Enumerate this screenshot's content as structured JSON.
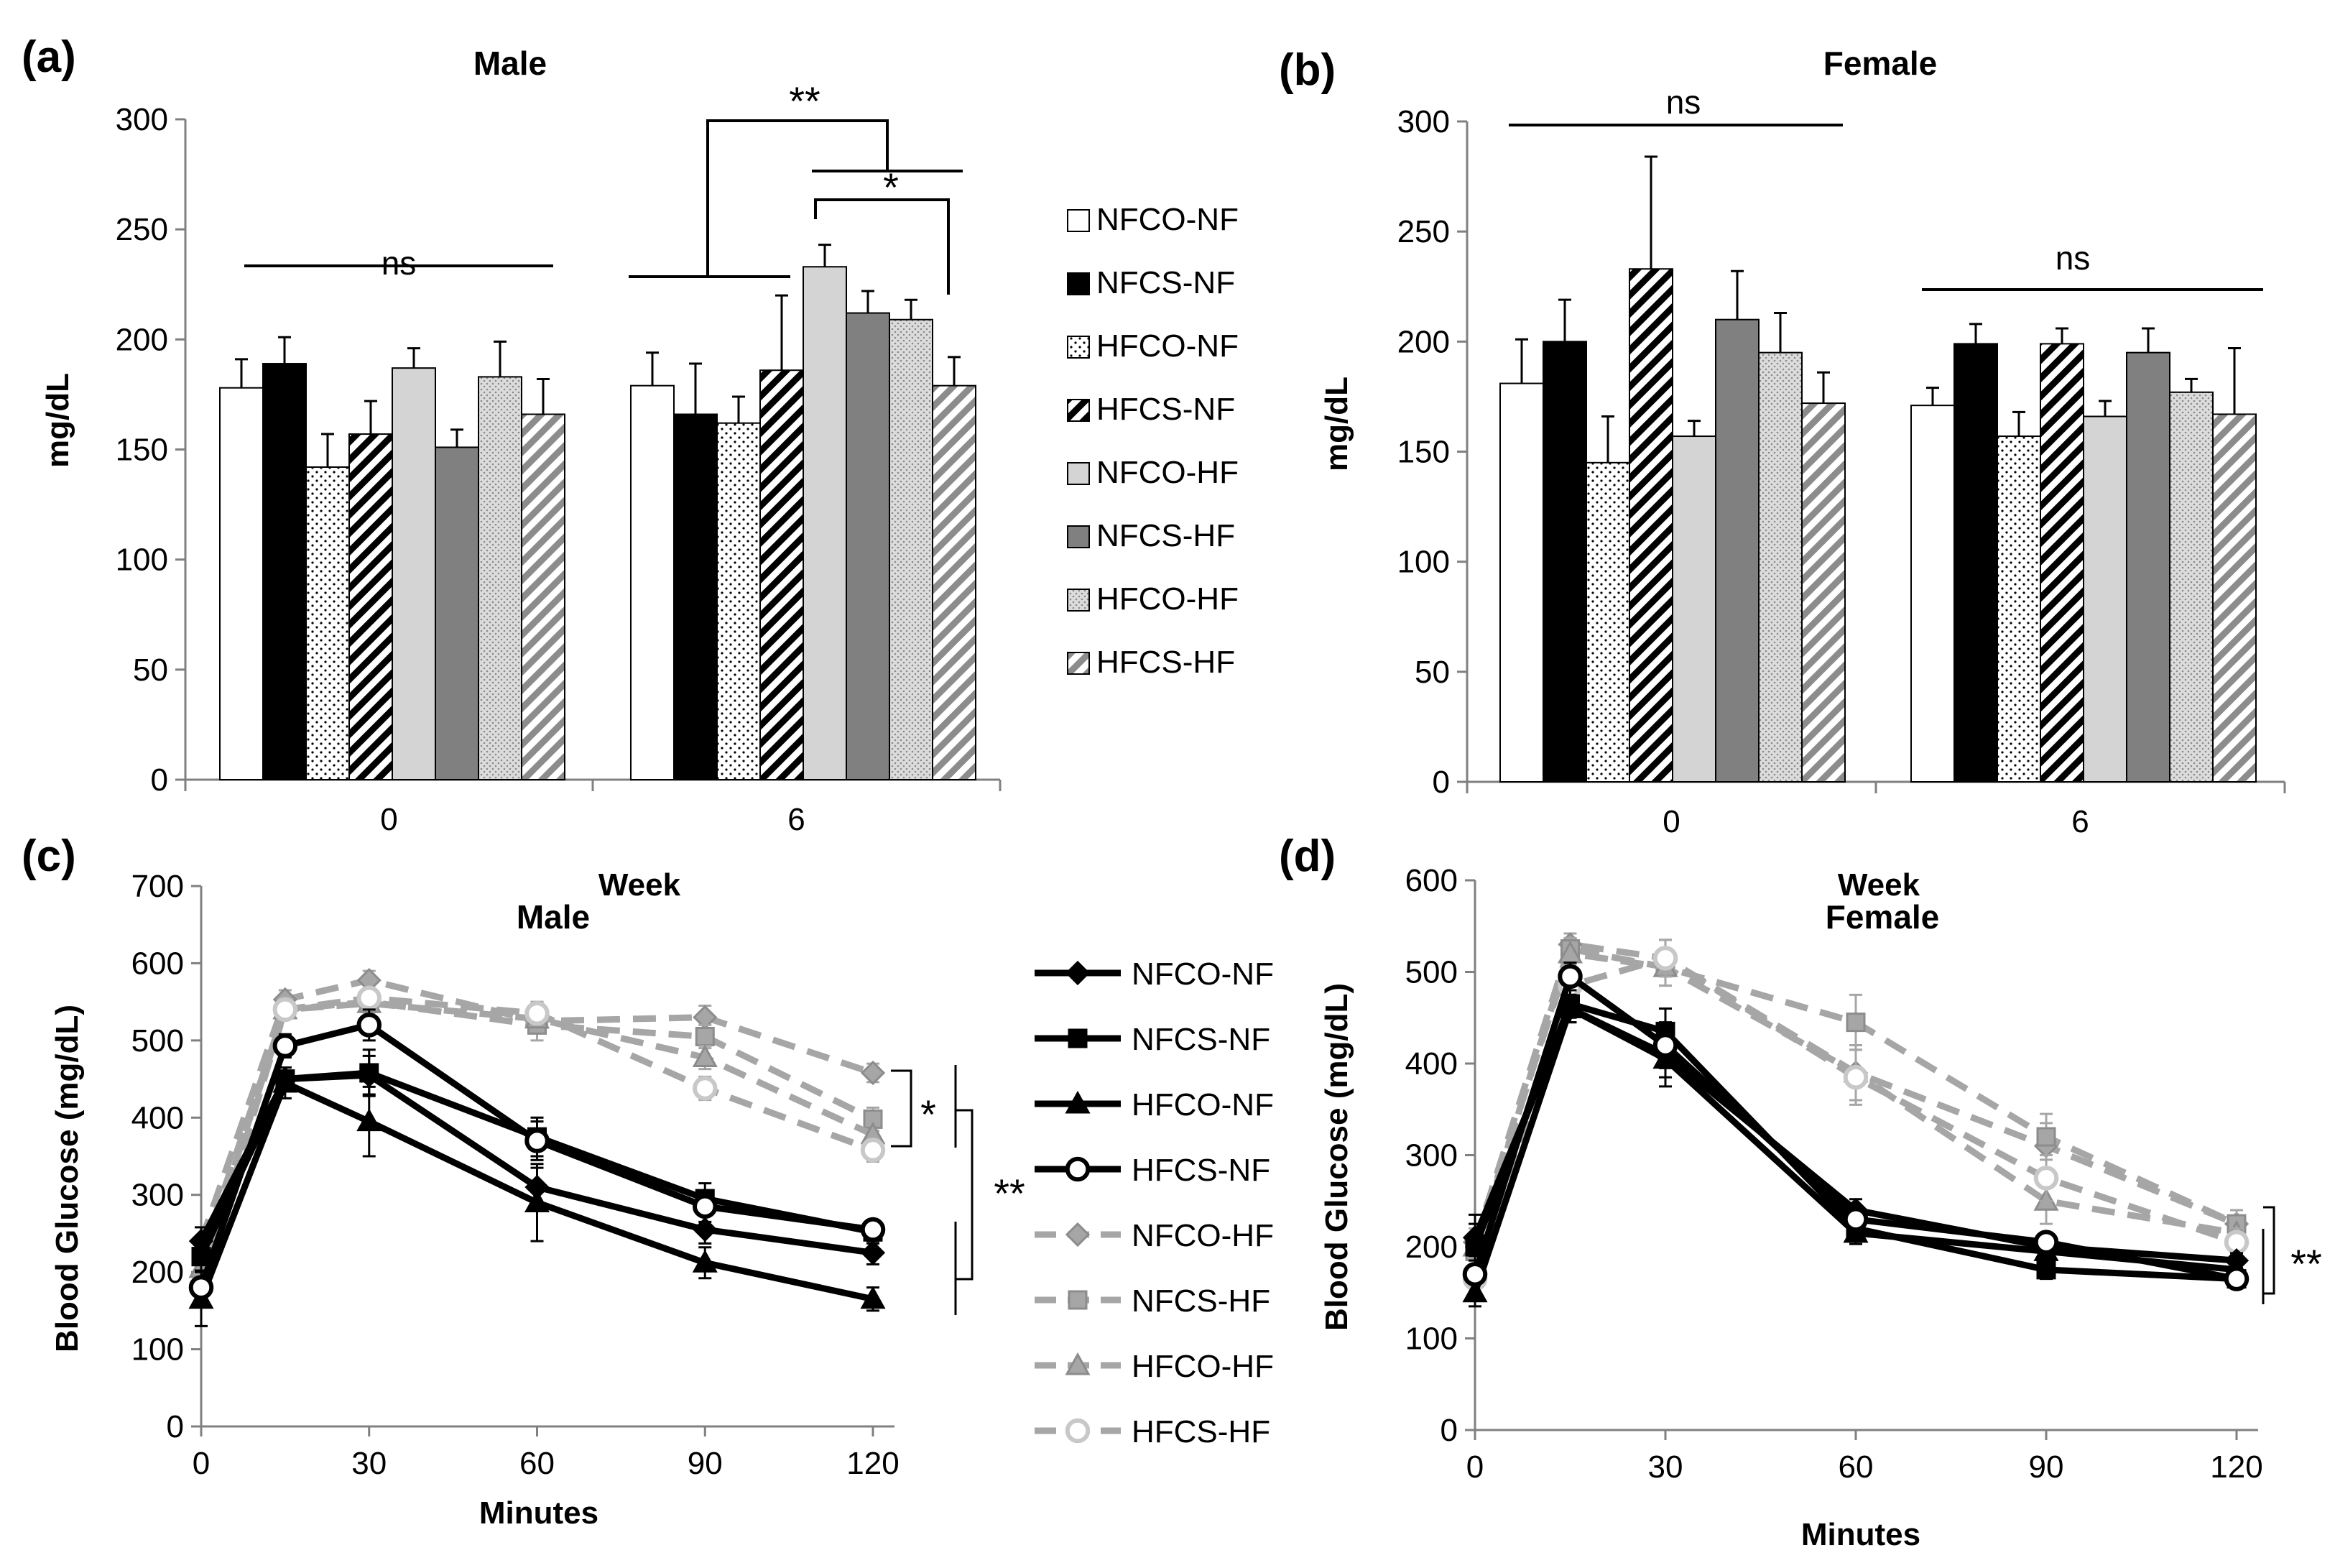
{
  "colors": {
    "NFCO": "#ffffff",
    "NFCS": "#000000",
    "NFCO-HF": "#d4d4d4",
    "NFCS-HF": "#808080",
    "line_nf": "#000000",
    "line_hf": "#a6a6a6",
    "line_hf_circle": "#c8c8c8"
  },
  "chart_data": [
    {
      "id": "a",
      "panel_label": "(a)",
      "type": "bar",
      "title": "Male",
      "xlabel": "Week",
      "ylabel": "mg/dL",
      "ylim": [
        0,
        300
      ],
      "yticks": [
        "0",
        "50",
        "100",
        "150",
        "200",
        "250",
        "300"
      ],
      "categories": [
        "0",
        "6"
      ],
      "series": [
        {
          "name": "NFCO-NF",
          "style": "white",
          "values": [
            178,
            179
          ],
          "errors": [
            13,
            15
          ]
        },
        {
          "name": "NFCS-NF",
          "style": "black",
          "values": [
            189,
            166
          ],
          "errors": [
            12,
            23
          ]
        },
        {
          "name": "HFCO-NF",
          "style": "sparse-dots",
          "values": [
            142,
            162
          ],
          "errors": [
            15,
            12
          ]
        },
        {
          "name": "HFCS-NF",
          "style": "black-hatch",
          "values": [
            157,
            186
          ],
          "errors": [
            15,
            34
          ]
        },
        {
          "name": "NFCO-HF",
          "style": "light-gray",
          "values": [
            187,
            233
          ],
          "errors": [
            9,
            10
          ]
        },
        {
          "name": "NFCS-HF",
          "style": "gray",
          "values": [
            151,
            212
          ],
          "errors": [
            8,
            10
          ]
        },
        {
          "name": "HFCO-HF",
          "style": "dense-dots",
          "values": [
            183,
            209
          ],
          "errors": [
            16,
            9
          ]
        },
        {
          "name": "HFCS-HF",
          "style": "gray-hatch",
          "values": [
            166,
            179
          ],
          "errors": [
            16,
            13
          ]
        }
      ],
      "annotations": {
        "ns": "ns",
        "double_star": "**",
        "single_star": "*"
      }
    },
    {
      "id": "b",
      "panel_label": "(b)",
      "type": "bar",
      "title": "Female",
      "xlabel": "Week",
      "ylabel": "mg/dL",
      "ylim": [
        0,
        300
      ],
      "yticks": [
        "0",
        "50",
        "100",
        "150",
        "200",
        "250",
        "300"
      ],
      "categories": [
        "0",
        "6"
      ],
      "series": [
        {
          "name": "NFCO-NF",
          "style": "white",
          "values": [
            181,
            171
          ],
          "errors": [
            20,
            8
          ]
        },
        {
          "name": "NFCS-NF",
          "style": "black",
          "values": [
            200,
            199
          ],
          "errors": [
            19,
            9
          ]
        },
        {
          "name": "HFCO-NF",
          "style": "sparse-dots",
          "values": [
            145,
            157
          ],
          "errors": [
            21,
            11
          ]
        },
        {
          "name": "HFCS-NF",
          "style": "black-hatch",
          "values": [
            233,
            199
          ],
          "errors": [
            51,
            7
          ]
        },
        {
          "name": "NFCO-HF",
          "style": "light-gray",
          "values": [
            157,
            166
          ],
          "errors": [
            7,
            7
          ]
        },
        {
          "name": "NFCS-HF",
          "style": "gray",
          "values": [
            210,
            195
          ],
          "errors": [
            22,
            11
          ]
        },
        {
          "name": "HFCO-HF",
          "style": "dense-dots",
          "values": [
            195,
            177
          ],
          "errors": [
            18,
            6
          ]
        },
        {
          "name": "HFCS-HF",
          "style": "gray-hatch",
          "values": [
            172,
            167
          ],
          "errors": [
            14,
            30
          ]
        }
      ],
      "annotations": {
        "ns": "ns"
      }
    },
    {
      "id": "c",
      "panel_label": "(c)",
      "type": "line",
      "title": "Male",
      "xlabel": "Minutes",
      "ylabel": "Blood Glucose (mg/dL)",
      "ylim": [
        0,
        700
      ],
      "yticks": [
        "0",
        "100",
        "200",
        "300",
        "400",
        "500",
        "600",
        "700"
      ],
      "xlim": [
        0,
        120
      ],
      "xticks": [
        "0",
        "30",
        "60",
        "90",
        "120"
      ],
      "x": [
        0,
        15,
        30,
        60,
        90,
        120
      ],
      "series": [
        {
          "name": "NFCO-NF",
          "marker": "diamond",
          "group": "NF",
          "values": [
            240,
            450,
            455,
            310,
            255,
            225
          ],
          "errors": [
            18,
            15,
            25,
            25,
            18,
            15
          ]
        },
        {
          "name": "NFCS-NF",
          "marker": "square",
          "group": "NF",
          "values": [
            220,
            450,
            458,
            375,
            295,
            252
          ],
          "errors": [
            18,
            15,
            30,
            25,
            20,
            15
          ]
        },
        {
          "name": "HFCO-NF",
          "marker": "triangle",
          "group": "NF",
          "values": [
            165,
            445,
            395,
            290,
            212,
            165
          ],
          "errors": [
            35,
            20,
            45,
            50,
            20,
            15
          ]
        },
        {
          "name": "HFCS-NF",
          "marker": "circle",
          "group": "NF",
          "values": [
            180,
            493,
            520,
            370,
            285,
            255
          ],
          "errors": [
            20,
            15,
            20,
            25,
            20,
            12
          ]
        },
        {
          "name": "NFCO-HF",
          "marker": "diamond",
          "group": "HF",
          "values": [
            240,
            553,
            578,
            525,
            530,
            458
          ],
          "errors": [
            18,
            12,
            12,
            15,
            15,
            12
          ]
        },
        {
          "name": "NFCS-HF",
          "marker": "square",
          "group": "HF",
          "values": [
            220,
            540,
            550,
            520,
            505,
            398
          ],
          "errors": [
            18,
            12,
            12,
            20,
            15,
            15
          ]
        },
        {
          "name": "HFCO-HF",
          "marker": "triangle",
          "group": "HF",
          "values": [
            205,
            540,
            548,
            528,
            478,
            378
          ],
          "errors": [
            18,
            12,
            12,
            15,
            15,
            15
          ]
        },
        {
          "name": "HFCS-HF",
          "marker": "circle",
          "group": "HF",
          "values": [
            180,
            540,
            555,
            535,
            438,
            358
          ],
          "errors": [
            20,
            12,
            12,
            15,
            15,
            15
          ]
        }
      ],
      "annotations": {
        "single_star": "*",
        "double_star": "**"
      }
    },
    {
      "id": "d",
      "panel_label": "(d)",
      "type": "line",
      "title": "Female",
      "xlabel": "Minutes",
      "ylabel": "Blood Glucose (mg/dL)",
      "ylim": [
        0,
        600
      ],
      "yticks": [
        "0",
        "100",
        "200",
        "300",
        "400",
        "500",
        "600"
      ],
      "xlim": [
        0,
        120
      ],
      "xticks": [
        "0",
        "30",
        "60",
        "90",
        "120"
      ],
      "x": [
        0,
        15,
        30,
        60,
        90,
        120
      ],
      "series": [
        {
          "name": "NFCO-NF",
          "marker": "diamond",
          "group": "NF",
          "values": [
            210,
            460,
            410,
            240,
            200,
            185
          ],
          "errors": [
            25,
            15,
            25,
            12,
            10,
            8
          ]
        },
        {
          "name": "NFCS-NF",
          "marker": "square",
          "group": "NF",
          "values": [
            200,
            465,
            435,
            220,
            175,
            165
          ],
          "errors": [
            25,
            15,
            25,
            12,
            10,
            8
          ]
        },
        {
          "name": "HFCO-NF",
          "marker": "triangle",
          "group": "NF",
          "values": [
            150,
            460,
            405,
            215,
            195,
            175
          ],
          "errors": [
            15,
            15,
            30,
            12,
            10,
            8
          ]
        },
        {
          "name": "HFCS-NF",
          "marker": "circle",
          "group": "NF",
          "values": [
            170,
            495,
            420,
            230,
            205,
            165
          ],
          "errors": [
            20,
            15,
            25,
            15,
            10,
            8
          ]
        },
        {
          "name": "NFCO-HF",
          "marker": "diamond",
          "group": "HF",
          "values": [
            205,
            530,
            515,
            390,
            310,
            225
          ],
          "errors": [
            20,
            12,
            20,
            30,
            25,
            15
          ]
        },
        {
          "name": "NFCS-HF",
          "marker": "square",
          "group": "HF",
          "values": [
            195,
            525,
            505,
            445,
            320,
            225
          ],
          "errors": [
            20,
            12,
            20,
            30,
            25,
            15
          ]
        },
        {
          "name": "HFCO-HF",
          "marker": "triangle",
          "group": "HF",
          "values": [
            200,
            520,
            505,
            390,
            250,
            215
          ],
          "errors": [
            20,
            12,
            20,
            30,
            25,
            15
          ]
        },
        {
          "name": "HFCS-HF",
          "marker": "circle",
          "group": "HF",
          "values": [
            165,
            485,
            515,
            385,
            275,
            205
          ],
          "errors": [
            20,
            12,
            20,
            30,
            25,
            15
          ]
        }
      ],
      "annotations": {
        "double_star": "**"
      }
    }
  ],
  "legend_bar_labels": [
    "NFCO-NF",
    "NFCS-NF",
    "HFCO-NF",
    "HFCS-NF",
    "NFCO-HF",
    "NFCS-HF",
    "HFCO-HF",
    "HFCS-HF"
  ],
  "legend_line_labels": [
    "NFCO-NF",
    "NFCS-NF",
    "HFCO-NF",
    "HFCS-NF",
    "NFCO-HF",
    "NFCS-HF",
    "HFCO-HF",
    "HFCS-HF"
  ]
}
